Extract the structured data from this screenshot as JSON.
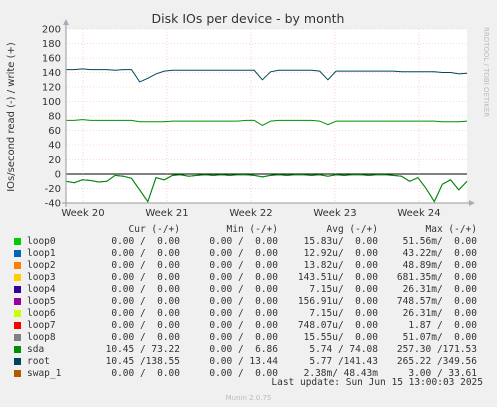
{
  "chart_data": {
    "type": "line",
    "title": "Disk IOs per device - by month",
    "ylabel": "IOs/second read (-) / write (+)",
    "watermark": "RRDTOOL / TOBI OETIKER",
    "ylim": [
      -40,
      200
    ],
    "yticks": [
      -40,
      -20,
      0,
      20,
      40,
      60,
      80,
      100,
      120,
      140,
      160,
      180,
      200
    ],
    "x_ticks": [
      "Week 20",
      "Week 21",
      "Week 22",
      "Week 23",
      "Week 24"
    ],
    "grid": true,
    "series": [
      {
        "name": "root",
        "color": "#00455a",
        "values": [
          144,
          144,
          145,
          144,
          144,
          144,
          143,
          144,
          144,
          127,
          132,
          138,
          142,
          143,
          143,
          143,
          143,
          143,
          143,
          143,
          143,
          143,
          143,
          143,
          130,
          141,
          143,
          143,
          143,
          143,
          143,
          142,
          130,
          142,
          142,
          142,
          142,
          142,
          142,
          142,
          142,
          141,
          141,
          141,
          141,
          141,
          140,
          140,
          138,
          139
        ]
      },
      {
        "name": "sda",
        "color": "#008f00",
        "values": [
          74,
          74,
          75,
          74,
          74,
          74,
          74,
          74,
          74,
          72,
          72,
          72,
          72,
          73,
          73,
          73,
          73,
          73,
          73,
          73,
          73,
          73,
          74,
          74,
          67,
          73,
          74,
          74,
          74,
          74,
          74,
          73,
          68,
          73,
          73,
          73,
          73,
          73,
          73,
          73,
          73,
          73,
          73,
          73,
          73,
          73,
          72,
          72,
          72,
          73
        ]
      },
      {
        "name": "root",
        "color": "#00455a",
        "values": [
          -10,
          -12,
          -8,
          -9,
          -11,
          -10,
          -2,
          -3,
          -6,
          -22,
          -38,
          -5,
          -8,
          -2,
          -1,
          -3,
          -2,
          -1,
          -2,
          -1,
          -2,
          -1,
          -1,
          -2,
          -4,
          -2,
          -1,
          -2,
          -1,
          -1,
          -2,
          -1,
          -3,
          -1,
          -2,
          -1,
          -1,
          -2,
          -1,
          -1,
          -2,
          -3,
          -10,
          -5,
          -20,
          -38,
          -14,
          -8,
          -22,
          -10
        ]
      },
      {
        "name": "sda",
        "color": "#008f00",
        "values": [
          -10,
          -12,
          -8,
          -9,
          -11,
          -10,
          -2,
          -3,
          -6,
          -22,
          -38,
          -5,
          -8,
          -2,
          -1,
          -3,
          -2,
          -1,
          -2,
          -1,
          -2,
          -1,
          -1,
          -2,
          -4,
          -2,
          -1,
          -2,
          -1,
          -1,
          -2,
          -1,
          -3,
          -1,
          -2,
          -1,
          -1,
          -2,
          -1,
          -1,
          -2,
          -3,
          -10,
          -5,
          -20,
          -38,
          -14,
          -8,
          -22,
          -10
        ]
      }
    ]
  },
  "legend": {
    "headers": {
      "cur": "Cur (-/+)",
      "min": "Min (-/+)",
      "avg": "Avg (-/+)",
      "max": "Max (-/+)"
    },
    "rows": [
      {
        "name": "loop0",
        "color": "#00cc00",
        "cur": "0.00 /  0.00",
        "min": "0.00 /  0.00",
        "avg": "15.83u/  0.00",
        "max": "51.56m/  0.00"
      },
      {
        "name": "loop1",
        "color": "#0066b3",
        "cur": "0.00 /  0.00",
        "min": "0.00 /  0.00",
        "avg": "12.92u/  0.00",
        "max": "43.22m/  0.00"
      },
      {
        "name": "loop2",
        "color": "#ff8000",
        "cur": "0.00 /  0.00",
        "min": "0.00 /  0.00",
        "avg": "13.82u/  0.00",
        "max": "48.89m/  0.00"
      },
      {
        "name": "loop3",
        "color": "#ffcc00",
        "cur": "0.00 /  0.00",
        "min": "0.00 /  0.00",
        "avg": "143.51u/  0.00",
        "max": "681.35m/  0.00"
      },
      {
        "name": "loop4",
        "color": "#330099",
        "cur": "0.00 /  0.00",
        "min": "0.00 /  0.00",
        "avg": "7.15u/  0.00",
        "max": "26.31m/  0.00"
      },
      {
        "name": "loop5",
        "color": "#990099",
        "cur": "0.00 /  0.00",
        "min": "0.00 /  0.00",
        "avg": "156.91u/  0.00",
        "max": "748.57m/  0.00"
      },
      {
        "name": "loop6",
        "color": "#ccff00",
        "cur": "0.00 /  0.00",
        "min": "0.00 /  0.00",
        "avg": "7.15u/  0.00",
        "max": "26.31m/  0.00"
      },
      {
        "name": "loop7",
        "color": "#ff0000",
        "cur": "0.00 /  0.00",
        "min": "0.00 /  0.00",
        "avg": "748.07u/  0.00",
        "max": "1.87 /  0.00"
      },
      {
        "name": "loop8",
        "color": "#808080",
        "cur": "0.00 /  0.00",
        "min": "0.00 /  0.00",
        "avg": "15.55u/  0.00",
        "max": "51.07m/  0.00"
      },
      {
        "name": "sda",
        "color": "#008f00",
        "cur": "10.45 / 73.22",
        "min": "0.00 /  6.86",
        "avg": "5.74 / 74.08",
        "max": "257.30 /171.53"
      },
      {
        "name": "root",
        "color": "#00455a",
        "cur": "10.45 /138.55",
        "min": "0.00 / 13.44",
        "avg": "5.77 /141.43",
        "max": "265.22 /349.56"
      },
      {
        "name": "swap_1",
        "color": "#b35a00",
        "cur": "0.00 /  0.00",
        "min": "0.00 /  0.00",
        "avg": "2.38m/ 48.43m",
        "max": "3.00 / 33.61"
      }
    ]
  },
  "last_update": "Last update: Sun Jun 15 13:00:03 2025",
  "munin_version": "Munin 2.0.75"
}
